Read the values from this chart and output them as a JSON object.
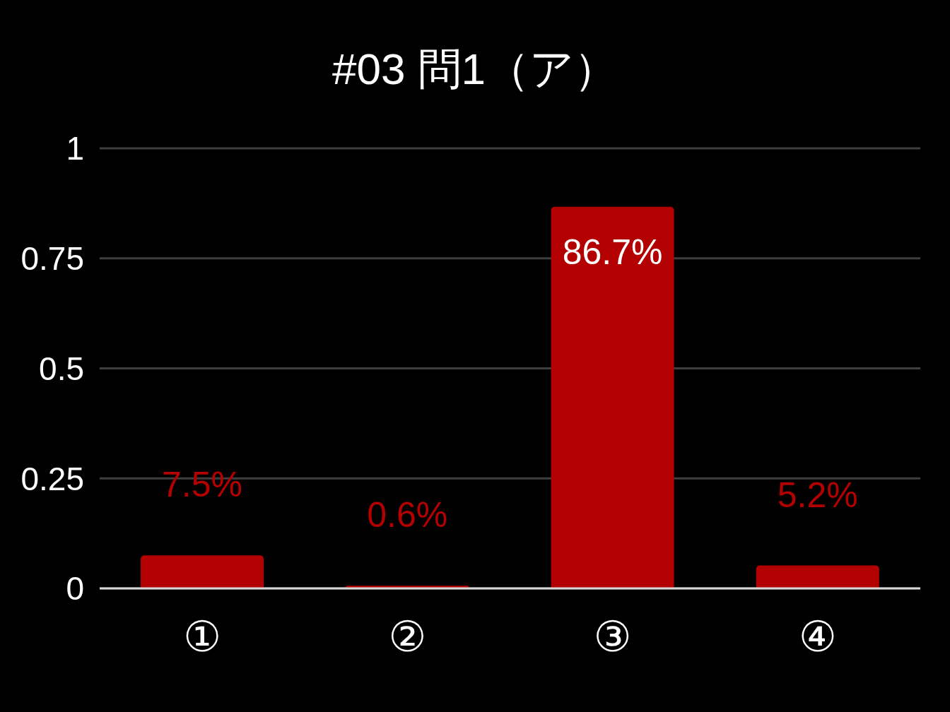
{
  "chart_data": {
    "type": "bar",
    "title": "#03 問1（ア）",
    "categories": [
      "①",
      "②",
      "③",
      "④"
    ],
    "values": [
      0.075,
      0.006,
      0.867,
      0.052
    ],
    "value_labels": [
      "7.5%",
      "0.6%",
      "86.7%",
      "5.2%"
    ],
    "color": "#b30000",
    "ylim": [
      0,
      1
    ],
    "yticks": [
      0,
      0.25,
      0.5,
      0.75,
      1
    ],
    "grid": "y"
  }
}
